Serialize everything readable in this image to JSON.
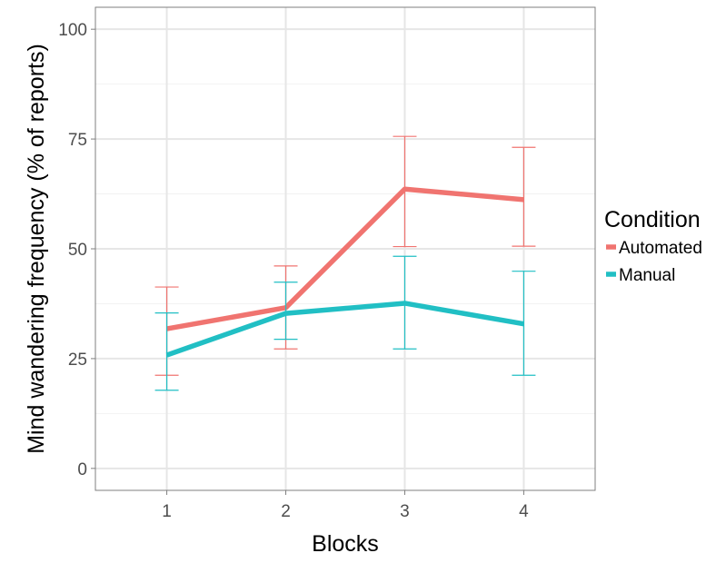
{
  "chart_data": {
    "type": "line",
    "xlabel": "Blocks",
    "ylabel": "Mind wandering frequency (% of reports)",
    "x": [
      1,
      2,
      3,
      4
    ],
    "x_tick_labels": [
      "1",
      "2",
      "3",
      "4"
    ],
    "xlim": [
      0.4,
      4.6
    ],
    "ylim": [
      -5,
      105
    ],
    "y_ticks": [
      0,
      25,
      50,
      75,
      100
    ],
    "y_tick_labels": [
      "0",
      "25",
      "50",
      "75",
      "100"
    ],
    "grid": true,
    "legend": {
      "title": "Condition",
      "placement": "right"
    },
    "series": [
      {
        "name": "Automated",
        "color": "#F07470",
        "values": [
          31.8,
          36.6,
          63.6,
          61.2
        ],
        "error_low": [
          21.2,
          27.2,
          50.5,
          50.6
        ],
        "error_high": [
          41.3,
          46.1,
          75.6,
          73.1
        ]
      },
      {
        "name": "Manual",
        "color": "#21BFC4",
        "values": [
          25.8,
          35.3,
          37.6,
          32.9
        ],
        "error_low": [
          17.8,
          29.4,
          27.2,
          21.2
        ],
        "error_high": [
          35.4,
          42.4,
          48.3,
          44.9
        ]
      }
    ]
  }
}
